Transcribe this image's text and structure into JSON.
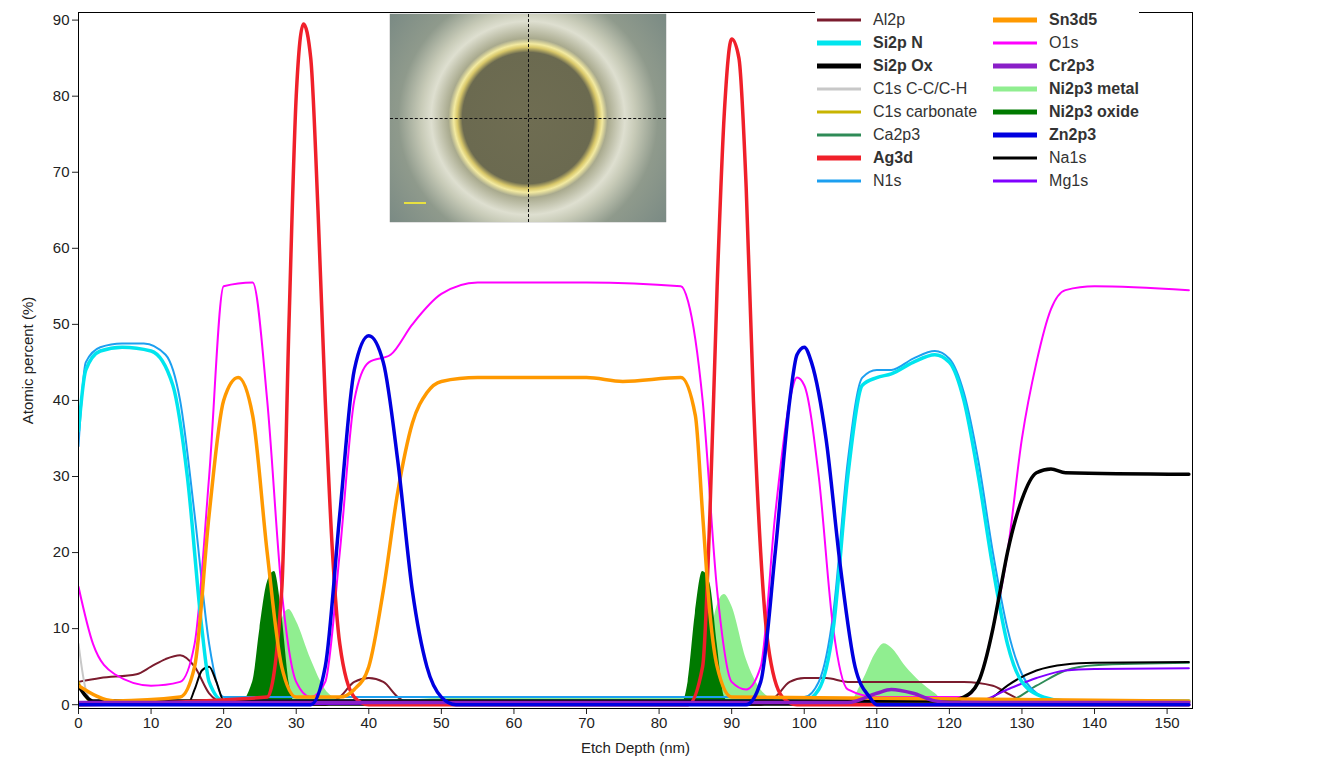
{
  "chart_data": {
    "type": "line",
    "x_label": "Etch Depth (nm)",
    "y_label": "Atomic percent (%)",
    "xlim": [
      0,
      153.5
    ],
    "ylim": [
      -0.5,
      91
    ],
    "xticks": [
      0,
      10,
      20,
      30,
      40,
      50,
      60,
      70,
      80,
      90,
      100,
      110,
      120,
      130,
      140,
      150
    ],
    "yticks": [
      0,
      10,
      20,
      30,
      40,
      50,
      60,
      70,
      80,
      90
    ],
    "grid": false,
    "legend": "top-right",
    "series": [
      {
        "name": "Al2p",
        "color": "#7b1c2e",
        "x": [
          0,
          3,
          8,
          10,
          12,
          14,
          16,
          18,
          20,
          34,
          36,
          38,
          40,
          42,
          44,
          46,
          94,
          96,
          98,
          100,
          103,
          106,
          112,
          118,
          122,
          126,
          128,
          130,
          132,
          153
        ],
        "values": [
          3,
          3.5,
          4,
          5,
          6,
          6.5,
          5,
          1.5,
          0.3,
          0,
          1,
          3,
          3.5,
          3,
          1,
          0,
          0,
          1,
          3,
          3.5,
          3.5,
          3,
          3,
          3,
          3,
          2.5,
          1.5,
          0.5,
          0,
          0
        ]
      },
      {
        "name": "Si2p N",
        "color": "#00e5ee",
        "line_style": "thick",
        "x": [
          0,
          1,
          3,
          6,
          10,
          13,
          15,
          17,
          18,
          20,
          100,
          102,
          104,
          106,
          108,
          110,
          112,
          115,
          118,
          120,
          122,
          124,
          126,
          128,
          130,
          133,
          136,
          153
        ],
        "values": [
          36,
          44,
          46.5,
          47,
          46.5,
          42,
          30,
          10,
          3,
          0.5,
          0.5,
          2,
          10,
          30,
          42,
          43,
          43.5,
          45,
          46,
          45,
          40,
          30,
          18,
          8,
          3,
          1,
          0.5,
          0.5
        ]
      },
      {
        "name": "Si2p Ox",
        "color": "#000000",
        "line_style": "thick",
        "x": [
          0,
          2,
          120,
          122,
          124,
          126,
          127,
          128,
          130,
          132,
          134,
          136,
          153
        ],
        "values": [
          2.5,
          0.5,
          0.5,
          1,
          3,
          10,
          15,
          20,
          27,
          30.5,
          31,
          30.5,
          30.3
        ]
      },
      {
        "name": "C1s C-C/C-H",
        "color": "#c8c8c8",
        "x": [
          0,
          1,
          2,
          153
        ],
        "values": [
          8,
          2,
          0.3,
          0.3
        ]
      },
      {
        "name": "C1s carbonate",
        "color": "#c8b400",
        "x": [
          0,
          1,
          2,
          153
        ],
        "values": [
          3,
          1,
          0.2,
          0.2
        ]
      },
      {
        "name": "Ca2p3",
        "color": "#2e8b57",
        "x": [
          0,
          128,
          132,
          136,
          140,
          153
        ],
        "values": [
          0.3,
          0.5,
          2.5,
          4.5,
          5.2,
          5.5
        ]
      },
      {
        "name": "Ag3d",
        "color": "#f0202a",
        "line_style": "thick",
        "x": [
          0,
          26,
          28,
          29,
          30,
          31,
          32,
          33,
          34,
          35,
          36,
          38,
          40,
          84,
          86,
          87,
          88,
          89,
          90,
          91,
          92,
          93,
          94,
          95,
          97,
          99,
          153
        ],
        "values": [
          0,
          1,
          15,
          50,
          80,
          89.5,
          85,
          65,
          40,
          20,
          8,
          1,
          0,
          0,
          5,
          25,
          55,
          78,
          87.5,
          85,
          68,
          40,
          20,
          8,
          1,
          0,
          0
        ]
      },
      {
        "name": "N1s",
        "color": "#1c9ff0",
        "x": [
          0,
          1,
          3,
          6,
          9,
          12,
          14,
          16,
          18,
          20,
          100,
          102,
          104,
          106,
          108,
          110,
          112,
          115,
          118,
          120,
          122,
          124,
          126,
          128,
          130,
          133,
          136,
          153
        ],
        "values": [
          34,
          45,
          47,
          47.5,
          47.5,
          46,
          40,
          25,
          8,
          1,
          1,
          3,
          12,
          32,
          43,
          44,
          44,
          45.5,
          46.5,
          45.5,
          41,
          32,
          20,
          10,
          4,
          1,
          0.5,
          0.5
        ]
      },
      {
        "name": "Sn3d5",
        "color": "#ff9900",
        "line_style": "thick",
        "x": [
          0,
          5,
          14,
          16,
          18,
          20,
          22,
          24,
          26,
          28,
          30,
          36,
          38,
          40,
          42,
          44,
          46,
          48,
          50,
          55,
          70,
          75,
          83,
          85,
          86,
          87,
          88,
          90,
          153
        ],
        "values": [
          2.5,
          0.5,
          1,
          5,
          25,
          40,
          43,
          38,
          20,
          5,
          1,
          1,
          2,
          5,
          15,
          28,
          37,
          41,
          42.5,
          43,
          43,
          42.5,
          43,
          38,
          25,
          12,
          5,
          1,
          0.5
        ]
      },
      {
        "name": "O1s",
        "color": "#ff00ff",
        "x": [
          0,
          2,
          5,
          10,
          14,
          16,
          18,
          20,
          24,
          26,
          28,
          30,
          32,
          34,
          36,
          38,
          40,
          43,
          46,
          50,
          55,
          70,
          83,
          84,
          86,
          88,
          90,
          92,
          94,
          96,
          98,
          99,
          100,
          102,
          104,
          106,
          110,
          122,
          124,
          126,
          128,
          130,
          132,
          134,
          136,
          140,
          153
        ],
        "values": [
          15.5,
          8,
          4,
          2.5,
          3,
          8,
          30,
          55,
          55.5,
          40,
          15,
          3,
          1,
          3,
          20,
          40,
          45,
          46,
          50,
          54,
          55.5,
          55.5,
          55,
          53,
          40,
          15,
          3,
          2,
          5,
          25,
          40,
          43,
          42,
          30,
          10,
          2,
          1,
          1,
          3,
          10,
          20,
          35,
          45,
          52,
          54.5,
          55,
          54.5
        ]
      },
      {
        "name": "Cr2p3",
        "color": "#8a1fc8",
        "line_style": "thick",
        "x": [
          0,
          106,
          110,
          112,
          115,
          118,
          120,
          153
        ],
        "values": [
          0.3,
          0.3,
          1.5,
          2,
          1.5,
          0.5,
          0.3,
          0.3
        ]
      },
      {
        "name": "Ni2p3 metal",
        "color": "#90ee90",
        "type": "area",
        "line_style": "thick",
        "x": [
          0,
          26,
          27,
          28,
          29,
          30,
          32,
          34,
          36,
          38,
          50,
          84,
          86,
          87,
          88,
          89,
          90,
          92,
          94,
          96,
          98,
          106,
          108,
          110,
          111,
          112,
          114,
          116,
          118,
          120,
          153
        ],
        "values": [
          0,
          0,
          5,
          11,
          12.5,
          11,
          6,
          2,
          0.5,
          0,
          0.8,
          0.8,
          0.8,
          8,
          13,
          14.5,
          13,
          6,
          2,
          0.5,
          0,
          0,
          3,
          7,
          8,
          7.5,
          5,
          3,
          1.5,
          0,
          0
        ]
      },
      {
        "name": "Ni2p3 oxide",
        "color": "#007a00",
        "type": "area",
        "line_style": "thick",
        "x": [
          0,
          22,
          24,
          25,
          26,
          27,
          28,
          29,
          30,
          83,
          84,
          85,
          86,
          87,
          88,
          89,
          90,
          153
        ],
        "values": [
          0,
          0,
          3,
          10,
          16,
          17.5,
          12,
          3,
          0,
          0,
          3,
          12,
          17.5,
          16,
          8,
          1,
          0,
          0
        ]
      },
      {
        "name": "Zn2p3",
        "color": "#0000e0",
        "line_style": "thick",
        "x": [
          0,
          32,
          34,
          36,
          38,
          40,
          42,
          44,
          46,
          48,
          50,
          52,
          92,
          94,
          96,
          98,
          99,
          100,
          101,
          103,
          105,
          107,
          109,
          110,
          153
        ],
        "values": [
          0,
          0,
          5,
          25,
          44,
          48.5,
          45,
          32,
          15,
          5,
          1,
          0,
          0,
          3,
          20,
          40,
          46,
          47,
          45,
          35,
          18,
          5,
          1,
          0,
          0
        ]
      },
      {
        "name": "Na1s",
        "color": "#000000",
        "x": [
          0,
          15,
          16,
          17,
          18,
          19,
          20,
          22,
          124,
          126,
          128,
          132,
          136,
          140,
          153
        ],
        "values": [
          0,
          0,
          2,
          4.5,
          5,
          3,
          0.5,
          0,
          0,
          1,
          2.5,
          4.5,
          5.3,
          5.5,
          5.6
        ]
      },
      {
        "name": "Mg1s",
        "color": "#8000ff",
        "x": [
          0,
          124,
          128,
          132,
          136,
          140,
          153
        ],
        "values": [
          0,
          0.5,
          2,
          3.5,
          4.5,
          4.7,
          4.8
        ]
      }
    ]
  }
}
